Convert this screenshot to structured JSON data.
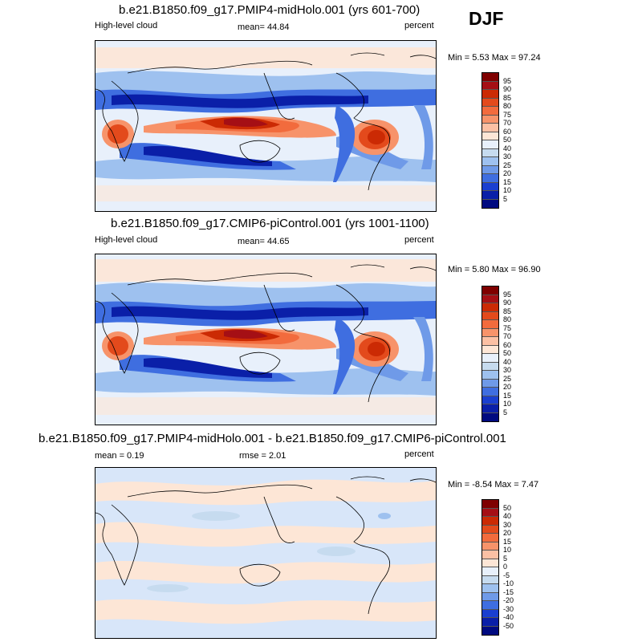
{
  "season": "DJF",
  "panels": [
    {
      "title": "b.e21.B1850.f09_g17.PMIP4-midHolo.001 (yrs 601-700)",
      "left_label": "High-level cloud",
      "center_label": "mean=  44.84",
      "right_label": "percent",
      "minmax": "Min =   5.53 Max =  97.24",
      "colorbar": {
        "labels": [
          "95",
          "90",
          "85",
          "80",
          "75",
          "70",
          "60",
          "50",
          "40",
          "30",
          "25",
          "20",
          "15",
          "10",
          "5"
        ],
        "colors": [
          "#7f0000",
          "#a50f15",
          "#cb2a04",
          "#e34a1c",
          "#f26b3d",
          "#f7936a",
          "#fbc0a4",
          "#fde6d6",
          "#e8f0fb",
          "#c6dbef",
          "#9ec1ef",
          "#6f9ae8",
          "#3f6ee0",
          "#1a3fd0",
          "#0a1fa8",
          "#000a80"
        ]
      }
    },
    {
      "title": "b.e21.B1850.f09_g17.CMIP6-piControl.001 (yrs 1001-1100)",
      "left_label": "High-level cloud",
      "center_label": "mean=  44.65",
      "right_label": "percent",
      "minmax": "Min =   5.80 Max =  96.90",
      "colorbar": {
        "labels": [
          "95",
          "90",
          "85",
          "80",
          "75",
          "70",
          "60",
          "50",
          "40",
          "30",
          "25",
          "20",
          "15",
          "10",
          "5"
        ],
        "colors": [
          "#7f0000",
          "#a50f15",
          "#cb2a04",
          "#e34a1c",
          "#f26b3d",
          "#f7936a",
          "#fbc0a4",
          "#fde6d6",
          "#e8f0fb",
          "#c6dbef",
          "#9ec1ef",
          "#6f9ae8",
          "#3f6ee0",
          "#1a3fd0",
          "#0a1fa8",
          "#000a80"
        ]
      }
    },
    {
      "title": "b.e21.B1850.f09_g17.PMIP4-midHolo.001 - b.e21.B1850.f09_g17.CMIP6-piControl.001",
      "left_label": "mean =   0.19",
      "center_label": "rmse =   2.01",
      "right_label": "percent",
      "minmax": "Min =  -8.54 Max =   7.47",
      "colorbar": {
        "labels": [
          "50",
          "40",
          "30",
          "20",
          "15",
          "10",
          "5",
          "0",
          "-5",
          "-10",
          "-15",
          "-20",
          "-30",
          "-40",
          "-50"
        ],
        "colors": [
          "#7f0000",
          "#a50f15",
          "#cb2a04",
          "#e34a1c",
          "#f26b3d",
          "#f7936a",
          "#fbc0a4",
          "#fde6d6",
          "#e8f0fb",
          "#c6dbef",
          "#9ec1ef",
          "#6f9ae8",
          "#3f6ee0",
          "#1a3fd0",
          "#0a1fa8",
          "#000a80"
        ]
      }
    }
  ]
}
